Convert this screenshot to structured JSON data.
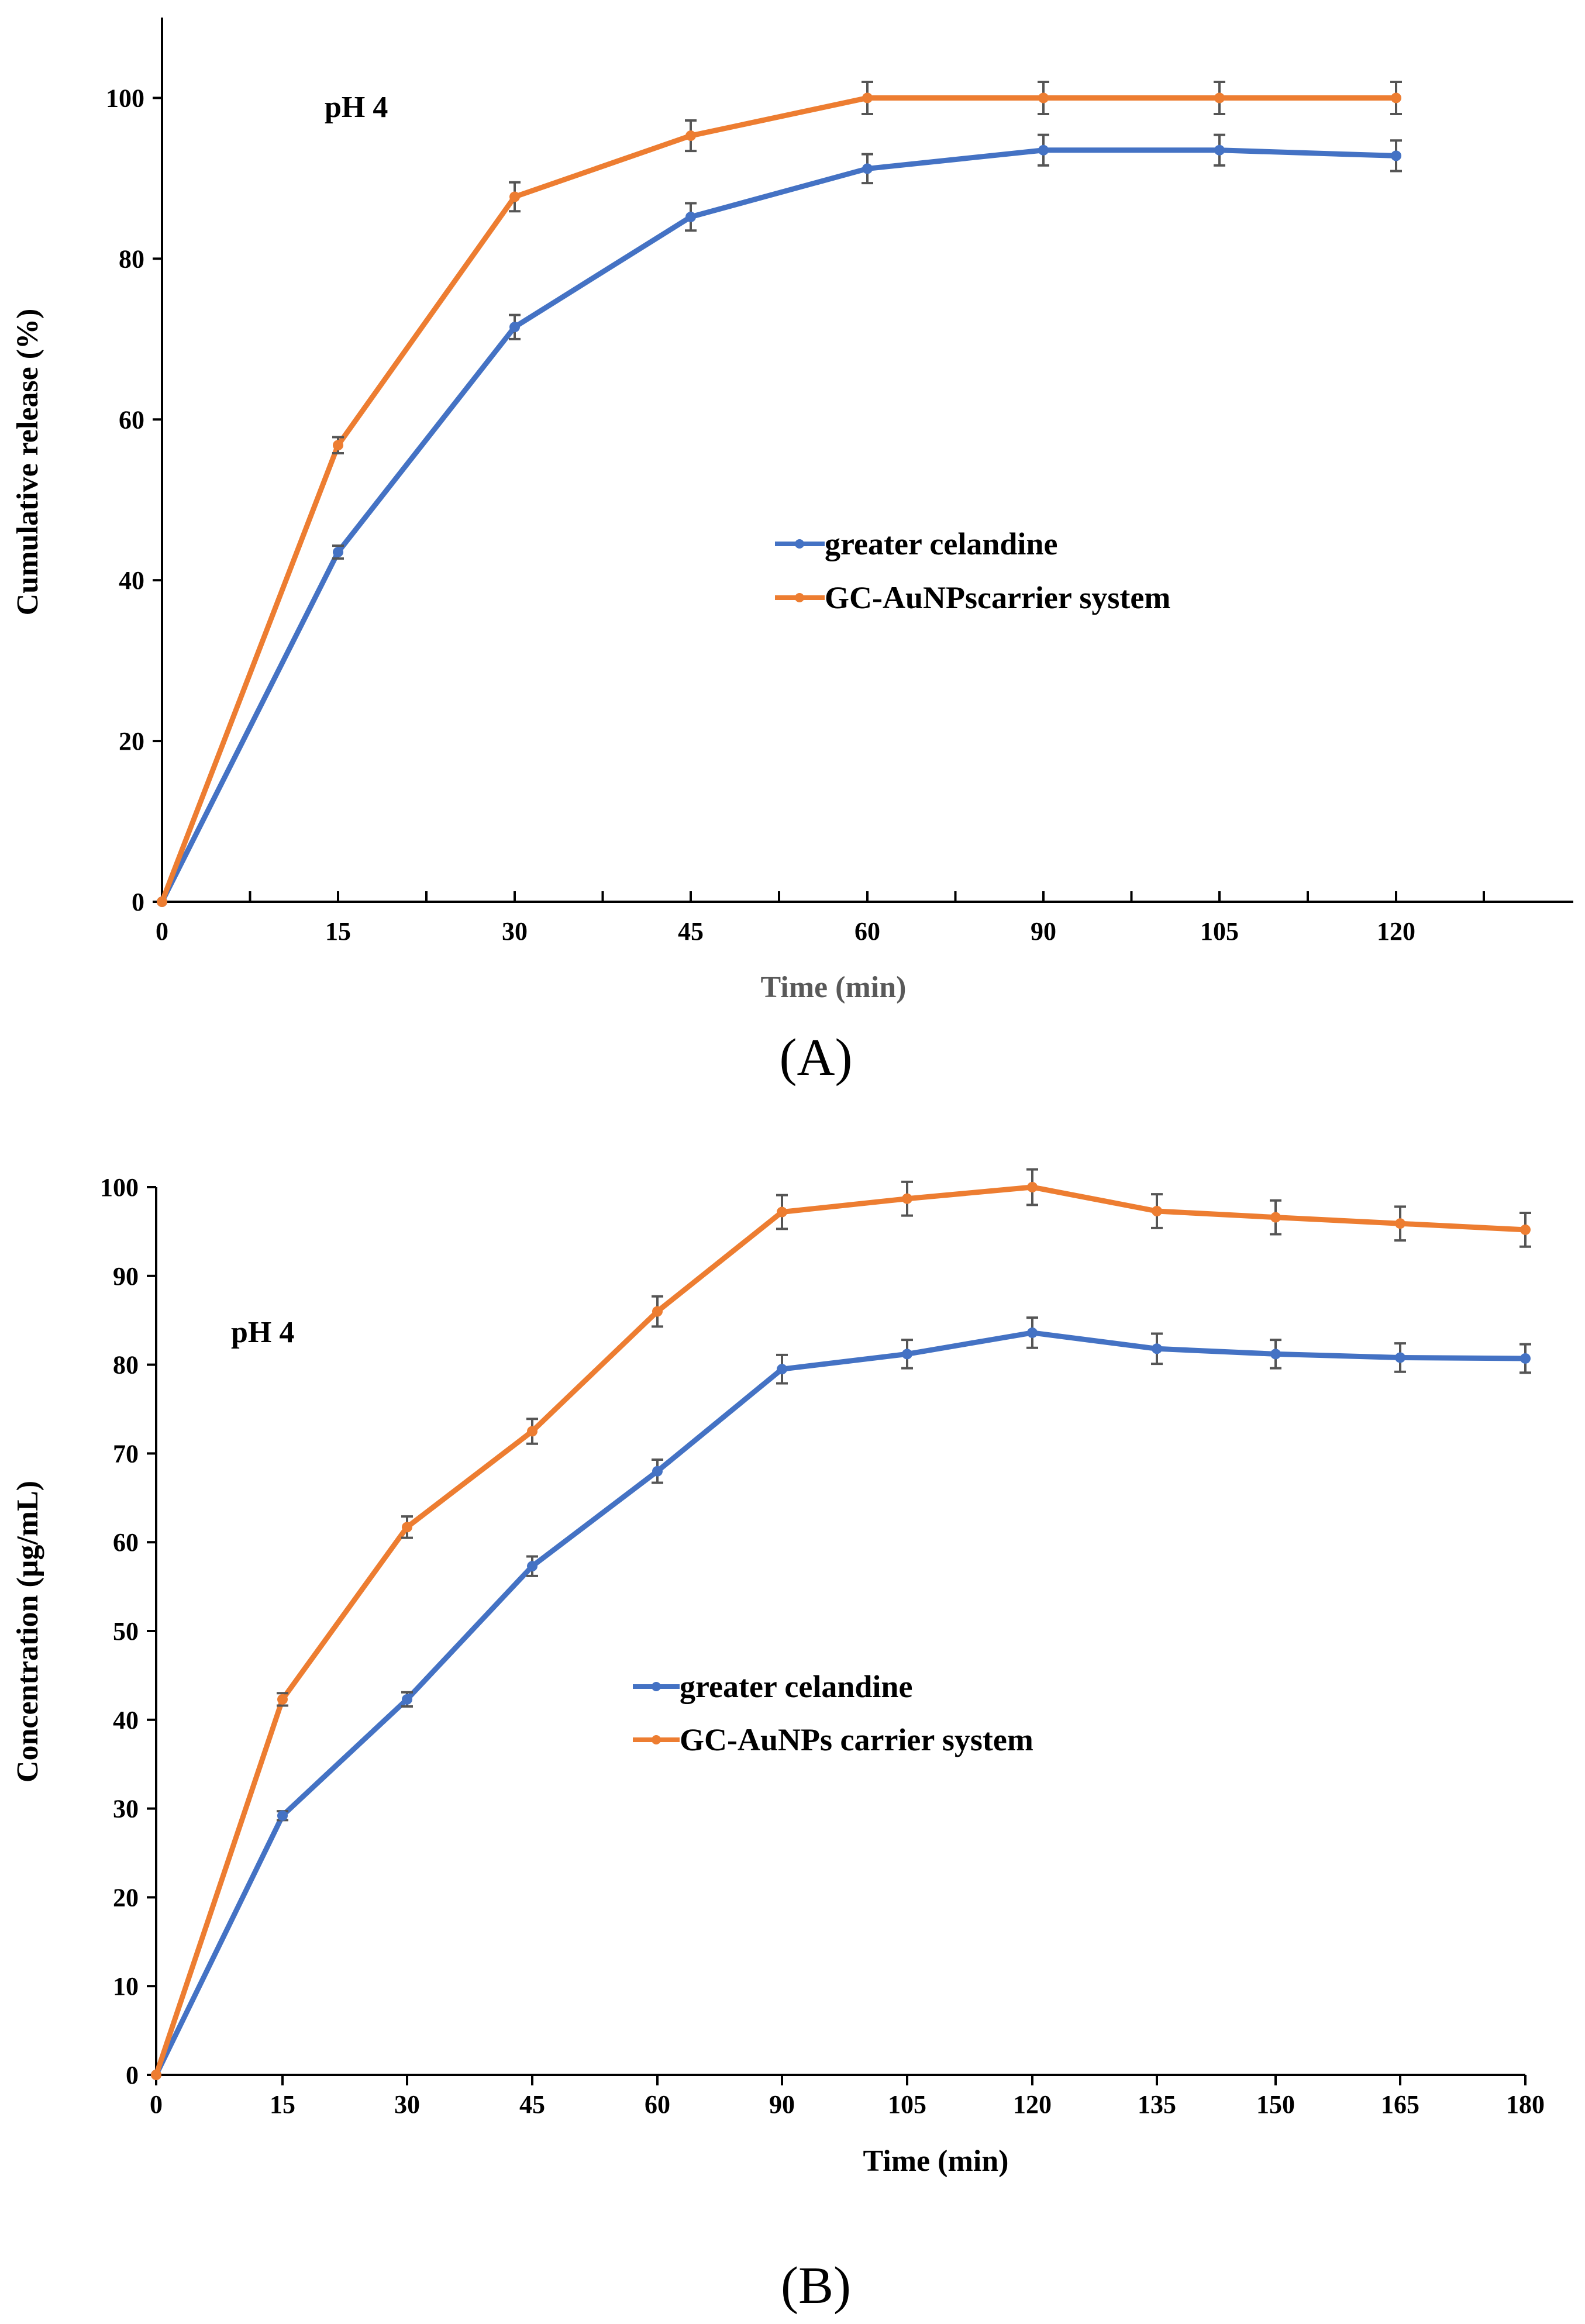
{
  "colors": {
    "series1": "#4472C4",
    "series2": "#ED7D31",
    "error_bar": "#555555",
    "axis": "#000000"
  },
  "chart_data": [
    {
      "id": "A",
      "type": "line",
      "panel_label": "(A)",
      "annotation": "pH 4",
      "title": "",
      "xlabel": "Time (min)",
      "ylabel": "Cumulative release (%)",
      "categories": [
        "0",
        "15",
        "30",
        "45",
        "60",
        "90",
        "105",
        "120"
      ],
      "ylim": [
        0,
        110
      ],
      "yticks": [
        0,
        20,
        40,
        60,
        80,
        100
      ],
      "grid": false,
      "legend_position": "center-right",
      "series": [
        {
          "name": "greater celandine",
          "color": "#4472C4",
          "values": [
            0,
            43.5,
            71.5,
            85.2,
            91.2,
            93.5,
            93.5,
            92.8
          ],
          "errors": [
            0,
            0.8,
            1.5,
            1.7,
            1.8,
            1.9,
            1.9,
            1.9
          ]
        },
        {
          "name": "GC-AuNPscarrier system",
          "color": "#ED7D31",
          "values": [
            0,
            56.8,
            87.7,
            95.3,
            100,
            100,
            100,
            100
          ],
          "errors": [
            0,
            1.0,
            1.8,
            1.9,
            2.0,
            2.0,
            2.0,
            2.0
          ]
        }
      ]
    },
    {
      "id": "B",
      "type": "line",
      "panel_label": "(B)",
      "annotation": "pH 4",
      "title": "",
      "xlabel": "Time (min)",
      "ylabel": "Concentration (μg/mL)",
      "categories": [
        "0",
        "15",
        "30",
        "45",
        "60",
        "90",
        "105",
        "120",
        "135",
        "150",
        "165",
        "180"
      ],
      "ylim": [
        0,
        100
      ],
      "yticks": [
        0,
        10,
        20,
        30,
        40,
        50,
        60,
        70,
        80,
        90,
        100
      ],
      "grid": false,
      "legend_position": "center",
      "series": [
        {
          "name": "greater celandine",
          "color": "#4472C4",
          "values": [
            0,
            29.2,
            42.3,
            57.3,
            68.0,
            79.5,
            81.2,
            83.6,
            81.8,
            81.2,
            80.8,
            80.7
          ],
          "errors": [
            0,
            0.5,
            0.8,
            1.1,
            1.3,
            1.6,
            1.6,
            1.7,
            1.7,
            1.6,
            1.6,
            1.6
          ]
        },
        {
          "name": "GC-AuNPs carrier system",
          "color": "#ED7D31",
          "values": [
            0,
            42.3,
            61.7,
            72.5,
            86.0,
            97.2,
            98.7,
            100,
            97.3,
            96.6,
            95.9,
            95.2
          ],
          "errors": [
            0,
            0.7,
            1.2,
            1.4,
            1.7,
            1.9,
            1.9,
            2.0,
            1.9,
            1.9,
            1.9,
            1.9
          ]
        }
      ]
    }
  ]
}
